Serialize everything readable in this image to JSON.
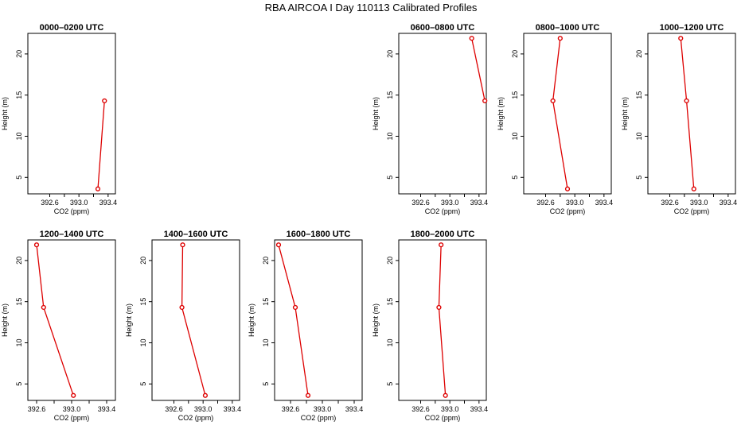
{
  "title": "RBA AIRCOA I  Day 110113  Calibrated Profiles",
  "colors": {
    "series": "#dd0000",
    "axis": "#000000",
    "background": "#ffffff"
  },
  "chart_data": [
    {
      "type": "line",
      "title": "0000–0200 UTC",
      "xlabel": "CO2 (ppm)",
      "ylabel": "Height (m)",
      "xlim": [
        392.3,
        393.5
      ],
      "ylim": [
        3,
        22.5
      ],
      "xticks": [
        "392.6",
        "393.0",
        "393.4"
      ],
      "yticks": [
        "5",
        "10",
        "15",
        "20"
      ],
      "series": [
        {
          "x": [
            393.35,
            393.26
          ],
          "y": [
            14.3,
            3.6
          ]
        }
      ]
    },
    {
      "type": "line",
      "title": "0600–0800 UTC",
      "xlabel": "CO2 (ppm)",
      "ylabel": "Height (m)",
      "xlim": [
        392.3,
        393.5
      ],
      "ylim": [
        3,
        22.5
      ],
      "xticks": [
        "392.6",
        "393.0",
        "393.4"
      ],
      "yticks": [
        "5",
        "10",
        "15",
        "20"
      ],
      "series": [
        {
          "x": [
            393.3,
            393.48
          ],
          "y": [
            21.9,
            14.3
          ]
        }
      ]
    },
    {
      "type": "line",
      "title": "0800–1000 UTC",
      "xlabel": "CO2 (ppm)",
      "ylabel": "Height (m)",
      "xlim": [
        392.3,
        393.5
      ],
      "ylim": [
        3,
        22.5
      ],
      "xticks": [
        "392.6",
        "393.0",
        "393.4"
      ],
      "yticks": [
        "5",
        "10",
        "15",
        "20"
      ],
      "series": [
        {
          "x": [
            392.8,
            392.7,
            392.9
          ],
          "y": [
            21.9,
            14.3,
            3.6
          ]
        }
      ]
    },
    {
      "type": "line",
      "title": "1000–1200 UTC",
      "xlabel": "CO2 (ppm)",
      "ylabel": "Height (m)",
      "xlim": [
        392.3,
        393.5
      ],
      "ylim": [
        3,
        22.5
      ],
      "xticks": [
        "392.6",
        "393.0",
        "393.4"
      ],
      "yticks": [
        "5",
        "10",
        "15",
        "20"
      ],
      "series": [
        {
          "x": [
            392.75,
            392.83,
            392.93
          ],
          "y": [
            21.9,
            14.3,
            3.6
          ]
        }
      ]
    },
    {
      "type": "line",
      "title": "1200–1400 UTC",
      "xlabel": "CO2 (ppm)",
      "ylabel": "Height (m)",
      "xlim": [
        392.5,
        393.5
      ],
      "ylim": [
        3,
        22.5
      ],
      "xticks": [
        "392.6",
        "393.0",
        "393.4"
      ],
      "yticks": [
        "5",
        "10",
        "15",
        "20"
      ],
      "series": [
        {
          "x": [
            392.6,
            392.68,
            393.02
          ],
          "y": [
            21.9,
            14.3,
            3.6
          ]
        }
      ]
    },
    {
      "type": "line",
      "title": "1400–1600 UTC",
      "xlabel": "CO2 (ppm)",
      "ylabel": "Height (m)",
      "xlim": [
        392.3,
        393.5
      ],
      "ylim": [
        3,
        22.5
      ],
      "xticks": [
        "392.6",
        "393.0",
        "393.4"
      ],
      "yticks": [
        "5",
        "10",
        "15",
        "20"
      ],
      "series": [
        {
          "x": [
            392.72,
            392.71,
            393.03
          ],
          "y": [
            21.9,
            14.3,
            3.6
          ]
        }
      ]
    },
    {
      "type": "line",
      "title": "1600–1800 UTC",
      "xlabel": "CO2 (ppm)",
      "ylabel": "Height (m)",
      "xlim": [
        392.4,
        393.5
      ],
      "ylim": [
        3,
        22.5
      ],
      "xticks": [
        "392.6",
        "393.0",
        "393.4"
      ],
      "yticks": [
        "5",
        "10",
        "15",
        "20"
      ],
      "series": [
        {
          "x": [
            392.45,
            392.66,
            392.82
          ],
          "y": [
            21.9,
            14.3,
            3.6
          ]
        }
      ]
    },
    {
      "type": "line",
      "title": "1800–2000 UTC",
      "xlabel": "CO2 (ppm)",
      "ylabel": "Height (m)",
      "xlim": [
        392.3,
        393.5
      ],
      "ylim": [
        3,
        22.5
      ],
      "xticks": [
        "392.6",
        "393.0",
        "393.4"
      ],
      "yticks": [
        "5",
        "10",
        "15",
        "20"
      ],
      "series": [
        {
          "x": [
            392.88,
            392.85,
            392.94
          ],
          "y": [
            21.9,
            14.3,
            3.6
          ]
        }
      ]
    }
  ]
}
